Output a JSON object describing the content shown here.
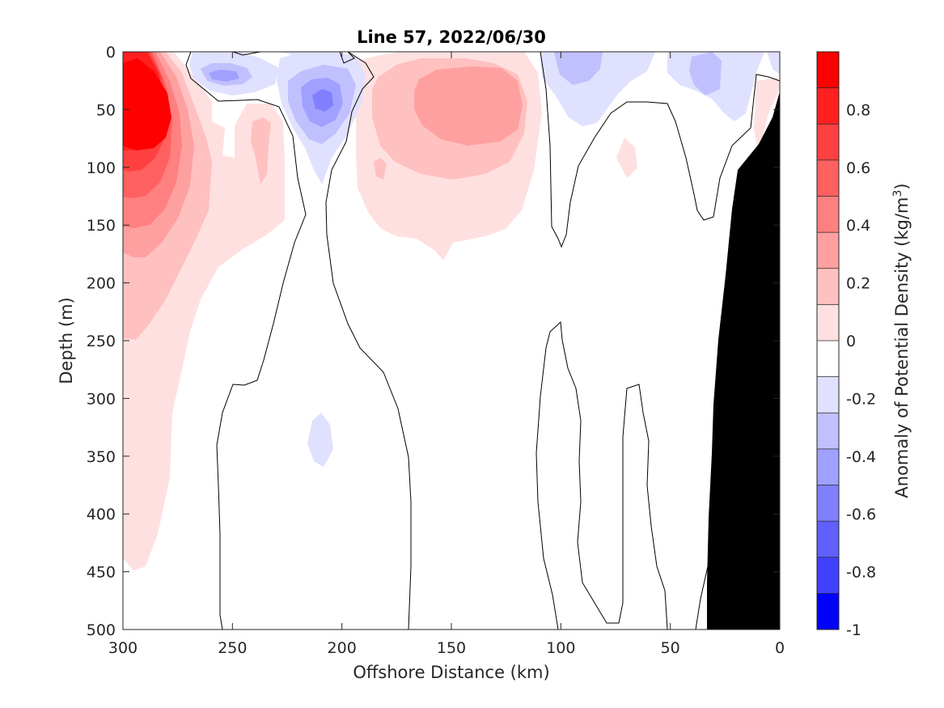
{
  "chart_data": {
    "type": "heatmap",
    "title": "Line 57, 2022/06/30",
    "xlabel": "Offshore Distance (km)",
    "ylabel": "Depth (m)",
    "xlim": [
      300,
      0
    ],
    "ylim": [
      0,
      500
    ],
    "x_direction": "reversed",
    "y_direction": "reversed",
    "x_ticks": [
      300,
      250,
      200,
      150,
      100,
      50,
      0
    ],
    "y_ticks": [
      0,
      50,
      100,
      150,
      200,
      250,
      300,
      350,
      400,
      450,
      500
    ],
    "colorbar": {
      "label": "Anomaly of Potential Density (kg/m³)",
      "label_main": "Anomaly of Potential Density (kg/m",
      "label_sup": "3",
      "label_close": ")",
      "range": [
        -1,
        1
      ],
      "step": 0.125,
      "ticks": [
        0.8,
        0.6,
        0.4,
        0.2,
        0,
        -0.2,
        -0.4,
        -0.6,
        -0.8,
        -1
      ],
      "tick_labels": [
        "0.8",
        "0.6",
        "0.4",
        "0.2",
        "0",
        "-0.2",
        "-0.4",
        "-0.6",
        "-0.8",
        "-1"
      ],
      "levels": [
        {
          "lo": 0.875,
          "hi": 1.0,
          "color": "#ff0000"
        },
        {
          "lo": 0.75,
          "hi": 0.875,
          "color": "#ff2020"
        },
        {
          "lo": 0.625,
          "hi": 0.75,
          "color": "#ff4040"
        },
        {
          "lo": 0.5,
          "hi": 0.625,
          "color": "#ff6060"
        },
        {
          "lo": 0.375,
          "hi": 0.5,
          "color": "#ff8080"
        },
        {
          "lo": 0.25,
          "hi": 0.375,
          "color": "#ffa0a0"
        },
        {
          "lo": 0.125,
          "hi": 0.25,
          "color": "#ffc0c0"
        },
        {
          "lo": 0.0,
          "hi": 0.125,
          "color": "#ffe0e0"
        },
        {
          "lo": -0.125,
          "hi": 0.0,
          "color": "#ffffff"
        },
        {
          "lo": -0.25,
          "hi": -0.125,
          "color": "#e0e0ff"
        },
        {
          "lo": -0.375,
          "hi": -0.25,
          "color": "#c0c0ff"
        },
        {
          "lo": -0.5,
          "hi": -0.375,
          "color": "#a0a0ff"
        },
        {
          "lo": -0.625,
          "hi": -0.5,
          "color": "#8080ff"
        },
        {
          "lo": -0.75,
          "hi": -0.625,
          "color": "#6060ff"
        },
        {
          "lo": -0.875,
          "hi": -0.75,
          "color": "#4040ff"
        },
        {
          "lo": -1.0,
          "hi": -0.875,
          "color": "#0000ff"
        }
      ]
    },
    "features": [
      {
        "kind": "positive_anomaly",
        "center_km": 290,
        "center_depth_m": 55,
        "peak": 0.95
      },
      {
        "kind": "positive_anomaly",
        "center_km": 140,
        "center_depth_m": 50,
        "peak": 0.4
      },
      {
        "kind": "positive_anomaly",
        "center_km": 235,
        "center_depth_m": 85,
        "peak": 0.2
      },
      {
        "kind": "negative_anomaly",
        "center_km": 210,
        "center_depth_m": 40,
        "peak": -0.4
      },
      {
        "kind": "negative_anomaly",
        "center_km": 255,
        "center_depth_m": 20,
        "peak": -0.35
      },
      {
        "kind": "negative_anomaly",
        "center_km": 95,
        "center_depth_m": 15,
        "peak": -0.25
      },
      {
        "kind": "negative_anomaly",
        "center_km": 30,
        "center_depth_m": 20,
        "peak": -0.25
      },
      {
        "kind": "negative_anomaly",
        "center_km": 210,
        "center_depth_m": 335,
        "peak": -0.15
      }
    ],
    "bathymetry": [
      [
        0,
        35
      ],
      [
        10,
        100
      ],
      [
        20,
        150
      ],
      [
        24,
        195
      ],
      [
        30,
        330
      ],
      [
        33,
        500
      ]
    ],
    "zero_contour_color": "#000000",
    "bathymetry_color": "#000000",
    "grid": false
  }
}
